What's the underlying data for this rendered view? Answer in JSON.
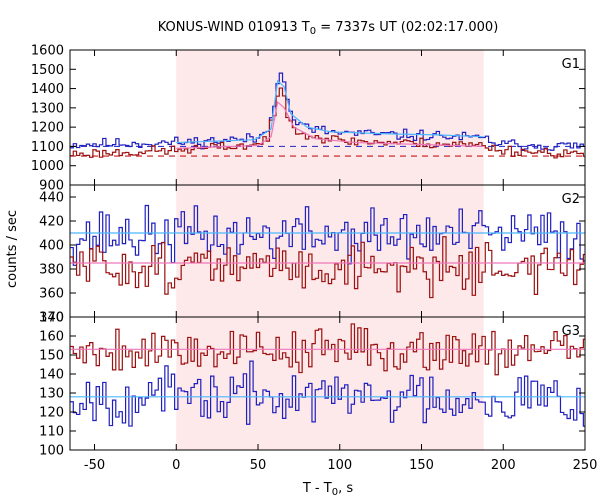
{
  "chart_data": {
    "type": "line",
    "title": "KONUS-WIND 010913 T",
    "title_sub": "0",
    "title_rest": " = 7337s UT (02:02:17.000)",
    "xlabel": "T - T",
    "xlabel_sub": "0",
    "xlabel_rest": ", s",
    "ylabel": "counts / sec",
    "xlim": [
      -65,
      250
    ],
    "x_ticks": [
      -50,
      0,
      50,
      100,
      150,
      200,
      250
    ],
    "x_tick_labels": [
      "-50",
      "0",
      "50",
      "100",
      "150",
      "200",
      "250"
    ],
    "highlight_interval": [
      0,
      188
    ],
    "highlight_color": "#fde8ea",
    "bin_width": 2,
    "colors": {
      "blue": "#1f1fbf",
      "red": "#9c1010",
      "blue_fit": "#4db8ff",
      "red_fit": "#ee77bb",
      "blue_bg": "#3a3ad0",
      "red_bg": "#c81818"
    },
    "panels": [
      {
        "label": "G1",
        "ylim": [
          900,
          1600
        ],
        "y_ticks": [
          900,
          1000,
          1100,
          1200,
          1300,
          1400,
          1500,
          1600
        ],
        "background": [
          {
            "color": "blue",
            "value": 1100
          },
          {
            "color": "red",
            "value": 1050
          }
        ],
        "fit_segments": [
          {
            "color": "blue_fit",
            "points": [
              [
                0,
                1120
              ],
              [
                48,
                1135
              ],
              [
                58,
                1190
              ],
              [
                62,
                1440
              ],
              [
                66,
                1410
              ],
              [
                70,
                1270
              ],
              [
                80,
                1200
              ],
              [
                95,
                1175
              ],
              [
                130,
                1165
              ],
              [
                160,
                1160
              ],
              [
                188,
                1150
              ]
            ]
          },
          {
            "color": "red_fit",
            "points": [
              [
                0,
                1090
              ],
              [
                50,
                1105
              ],
              [
                58,
                1150
              ],
              [
                62,
                1330
              ],
              [
                66,
                1300
              ],
              [
                72,
                1200
              ],
              [
                85,
                1140
              ],
              [
                110,
                1120
              ],
              [
                150,
                1110
              ],
              [
                188,
                1100
              ]
            ]
          }
        ],
        "series": [
          {
            "color": "blue",
            "base": [
              [
                -65,
                1110
              ],
              [
                0,
                1120
              ],
              [
                50,
                1140
              ],
              [
                56,
                1190
              ],
              [
                60,
                1330
              ],
              [
                62,
                1450
              ],
              [
                64,
                1490
              ],
              [
                66,
                1440
              ],
              [
                68,
                1330
              ],
              [
                70,
                1280
              ],
              [
                74,
                1220
              ],
              [
                82,
                1190
              ],
              [
                100,
                1170
              ],
              [
                130,
                1160
              ],
              [
                160,
                1155
              ],
              [
                188,
                1140
              ],
              [
                200,
                1110
              ],
              [
                250,
                1100
              ]
            ],
            "noise": 14,
            "seed": 11
          },
          {
            "color": "red",
            "base": [
              [
                -65,
                1060
              ],
              [
                0,
                1080
              ],
              [
                50,
                1110
              ],
              [
                56,
                1150
              ],
              [
                60,
                1250
              ],
              [
                62,
                1360
              ],
              [
                64,
                1400
              ],
              [
                66,
                1350
              ],
              [
                68,
                1270
              ],
              [
                72,
                1210
              ],
              [
                80,
                1160
              ],
              [
                100,
                1130
              ],
              [
                130,
                1120
              ],
              [
                160,
                1115
              ],
              [
                188,
                1105
              ],
              [
                200,
                1080
              ],
              [
                250,
                1060
              ]
            ],
            "noise": 13,
            "seed": 23
          }
        ]
      },
      {
        "label": "G2",
        "ylim": [
          340,
          450
        ],
        "y_ticks": [
          340,
          360,
          380,
          400,
          420,
          440
        ],
        "background": [],
        "fit_segments": [
          {
            "color": "blue_fit",
            "points": [
              [
                -65,
                410
              ],
              [
                250,
                410
              ]
            ]
          },
          {
            "color": "red_fit",
            "points": [
              [
                -65,
                385
              ],
              [
                250,
                385
              ]
            ]
          }
        ],
        "series": [
          {
            "color": "blue",
            "base": [
              [
                -65,
                408
              ],
              [
                250,
                408
              ]
            ],
            "noise": 11,
            "seed": 37
          },
          {
            "color": "red",
            "base": [
              [
                -65,
                382
              ],
              [
                250,
                382
              ]
            ],
            "noise": 10,
            "seed": 51
          }
        ]
      },
      {
        "label": "G3",
        "ylim": [
          100,
          170
        ],
        "y_ticks": [
          100,
          110,
          120,
          130,
          140,
          150,
          160,
          170
        ],
        "background": [],
        "fit_segments": [
          {
            "color": "blue_fit",
            "points": [
              [
                -65,
                128
              ],
              [
                250,
                128
              ]
            ]
          },
          {
            "color": "red_fit",
            "points": [
              [
                -65,
                153
              ],
              [
                250,
                153
              ]
            ]
          }
        ],
        "series": [
          {
            "color": "blue",
            "base": [
              [
                -65,
                128
              ],
              [
                250,
                128
              ]
            ],
            "noise": 7,
            "seed": 67
          },
          {
            "color": "red",
            "base": [
              [
                -65,
                153
              ],
              [
                250,
                153
              ]
            ],
            "noise": 6,
            "seed": 79
          }
        ]
      }
    ]
  }
}
